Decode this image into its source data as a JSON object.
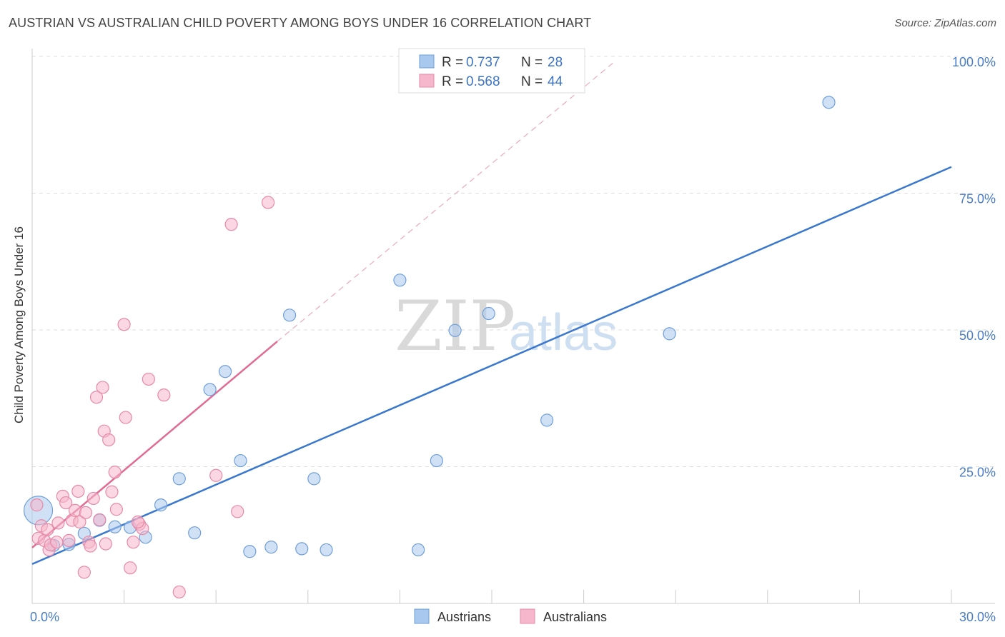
{
  "title": "AUSTRIAN VS AUSTRALIAN CHILD POVERTY AMONG BOYS UNDER 16 CORRELATION CHART",
  "source": "Source: ZipAtlas.com",
  "watermark": {
    "zip": "ZIP",
    "atlas": "atlas"
  },
  "chart_data": {
    "type": "scatter",
    "ylabel": "Child Poverty Among Boys Under 16",
    "xlim": [
      0,
      30
    ],
    "ylim": [
      0,
      100
    ],
    "x_tick_labels": [
      {
        "value": 0,
        "label": "0.0%"
      },
      {
        "value": 30,
        "label": "30.0%"
      }
    ],
    "y_tick_labels": [
      {
        "value": 25,
        "label": "25.0%"
      },
      {
        "value": 50,
        "label": "50.0%"
      },
      {
        "value": 75,
        "label": "75.0%"
      },
      {
        "value": 100,
        "label": "100.0%"
      }
    ],
    "legend_box": [
      {
        "r_label": "R = ",
        "r_value": "0.737",
        "n_label": "N = ",
        "n_value": "28",
        "color": "#a9c8ee"
      },
      {
        "r_label": "R = ",
        "r_value": "0.568",
        "n_label": "N = ",
        "n_value": "44",
        "color": "#f6b6cb"
      }
    ],
    "series": [
      {
        "name": "Austrians",
        "color": "#a9c8ee",
        "stroke": "#6f9fd8",
        "line_color": "#3a78cf",
        "trend": {
          "x0": 0,
          "y0": 7.2,
          "x1": 30,
          "y1": 79.8,
          "dashed_extension": false
        },
        "points": [
          [
            0.2,
            17.0,
            "large"
          ],
          [
            0.7,
            10.6
          ],
          [
            1.2,
            10.8
          ],
          [
            1.7,
            12.8
          ],
          [
            2.2,
            15.2
          ],
          [
            2.7,
            14.0
          ],
          [
            3.2,
            13.9
          ],
          [
            3.7,
            12.1
          ],
          [
            4.2,
            18.0
          ],
          [
            4.8,
            22.8
          ],
          [
            5.3,
            12.9
          ],
          [
            5.8,
            39.1
          ],
          [
            6.3,
            42.4
          ],
          [
            6.8,
            26.1
          ],
          [
            7.1,
            9.5
          ],
          [
            7.8,
            10.3
          ],
          [
            8.4,
            52.7
          ],
          [
            8.8,
            10.0
          ],
          [
            9.2,
            22.8
          ],
          [
            9.6,
            9.8
          ],
          [
            12.0,
            59.1
          ],
          [
            12.6,
            9.8
          ],
          [
            13.2,
            26.1
          ],
          [
            13.8,
            49.9
          ],
          [
            14.9,
            53.0
          ],
          [
            16.8,
            33.5
          ],
          [
            20.8,
            49.3
          ],
          [
            26.0,
            91.6
          ]
        ]
      },
      {
        "name": "Australians",
        "color": "#f6b6cb",
        "stroke": "#e68aa8",
        "line_color": "#e06b94",
        "trend": {
          "x0": 0,
          "y0": 10.2,
          "x1": 8.0,
          "y1": 47.9,
          "ext_x1": 19.0,
          "ext_y1": 99.0
        },
        "points": [
          [
            0.15,
            18.0
          ],
          [
            0.2,
            11.9
          ],
          [
            0.3,
            14.2
          ],
          [
            0.4,
            11.5
          ],
          [
            0.5,
            13.5
          ],
          [
            0.55,
            9.8
          ],
          [
            0.6,
            10.7
          ],
          [
            0.8,
            11.2
          ],
          [
            0.85,
            14.7
          ],
          [
            1.0,
            19.6
          ],
          [
            1.1,
            18.4
          ],
          [
            1.2,
            11.5
          ],
          [
            1.3,
            15.2
          ],
          [
            1.4,
            17.0
          ],
          [
            1.5,
            20.5
          ],
          [
            1.55,
            14.9
          ],
          [
            1.7,
            5.7
          ],
          [
            1.75,
            16.6
          ],
          [
            1.85,
            11.2
          ],
          [
            1.9,
            10.5
          ],
          [
            2.0,
            19.2
          ],
          [
            2.1,
            37.7
          ],
          [
            2.2,
            15.3
          ],
          [
            2.3,
            39.5
          ],
          [
            2.35,
            31.5
          ],
          [
            2.4,
            10.9
          ],
          [
            2.5,
            29.9
          ],
          [
            2.6,
            20.4
          ],
          [
            2.7,
            24.0
          ],
          [
            2.75,
            17.2
          ],
          [
            3.0,
            51.0
          ],
          [
            3.05,
            34.0
          ],
          [
            3.2,
            6.5
          ],
          [
            3.3,
            11.2
          ],
          [
            3.5,
            14.5
          ],
          [
            3.6,
            13.7
          ],
          [
            3.8,
            41.0
          ],
          [
            4.3,
            38.1
          ],
          [
            4.8,
            2.1
          ],
          [
            6.0,
            23.4
          ],
          [
            6.5,
            69.3
          ],
          [
            6.7,
            16.8
          ],
          [
            7.7,
            73.3
          ],
          [
            3.45,
            14.9
          ]
        ]
      }
    ]
  }
}
